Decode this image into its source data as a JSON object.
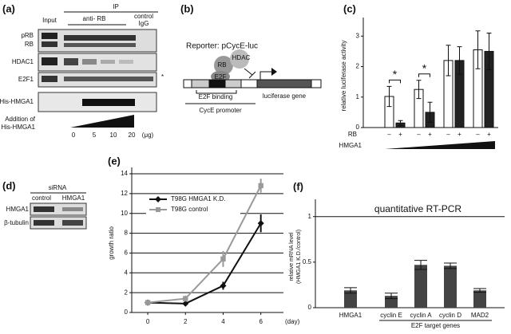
{
  "panel_a": {
    "label": "(a)",
    "ip": "IP",
    "input": "Input",
    "antibody": "anti- RB",
    "control": [
      "control",
      "IgG"
    ],
    "rows": [
      "pRB",
      "RB",
      "HDAC1",
      "E2F1",
      "His-HMGA1"
    ],
    "asterisk": "*",
    "addition": [
      "Addition of",
      "His-HMGA1"
    ],
    "doses": [
      "0",
      "5",
      "10",
      "20"
    ],
    "unit": "(μg)"
  },
  "panel_b": {
    "label": "(b)",
    "reporter": "Reporter: pCycE-luc",
    "rb": "RB",
    "hdac": "HDAC",
    "e2f": "E2F",
    "binding": "E2F binding",
    "promoter": "CycE promoter",
    "gene": "luciferase gene"
  },
  "panel_d": {
    "label": "(d)",
    "sirna": "siRNA",
    "columns": [
      "control",
      "HMGA1"
    ],
    "rows": [
      "HMGA1",
      "β-tubulin"
    ]
  },
  "chart_data": [
    {
      "type": "bar",
      "label": "(c)",
      "ylabel": "relative luciferase activity",
      "ylim": [
        0,
        3.4
      ],
      "yticks": [
        0,
        1,
        2,
        3
      ],
      "categories": [
        null,
        null,
        null,
        null
      ],
      "series": [
        {
          "name": "–",
          "color": "#ffffff",
          "values": [
            1.02,
            1.25,
            2.2,
            2.55
          ],
          "errors": [
            0.33,
            0.3,
            0.5,
            0.62
          ]
        },
        {
          "name": "+",
          "color": "#222222",
          "values": [
            0.15,
            0.5,
            2.2,
            2.5
          ],
          "errors": [
            0.08,
            0.33,
            0.45,
            0.6
          ]
        }
      ],
      "row_label": "RB",
      "xlabel": "HMGA1",
      "annotations": [
        {
          "text": "*",
          "category": 0
        },
        {
          "text": "*",
          "category": 1
        }
      ]
    },
    {
      "type": "line",
      "label": "(e)",
      "ylabel": "growth ratio",
      "xlabel": "(day)",
      "xlim": [
        -0.85,
        7.2
      ],
      "xticks": [
        0,
        2,
        4,
        6
      ],
      "ylim": [
        0,
        14
      ],
      "yticks": [
        0,
        2,
        4,
        6,
        8,
        10,
        12,
        14
      ],
      "grid": true,
      "x": [
        0,
        2,
        4,
        6
      ],
      "series": [
        {
          "name": "T98G HMGA1 K.D.",
          "color": "#111111",
          "marker": "diamond",
          "values": [
            1,
            0.9,
            2.7,
            9.0
          ],
          "errors": [
            0.2,
            0.2,
            0.4,
            0.9
          ]
        },
        {
          "name": "T98G control",
          "color": "#999999",
          "marker": "square",
          "values": [
            1,
            1.4,
            5.4,
            12.8
          ],
          "errors": [
            0.2,
            0.3,
            0.8,
            0.7
          ]
        }
      ]
    },
    {
      "type": "bar",
      "label": "(f)",
      "title": "quantitative RT-PCR",
      "ylabel": [
        "relative mRNA level",
        "(HMGA1 K.D./control)"
      ],
      "ylim": [
        0,
        1.12
      ],
      "yticks": [
        0,
        0.5,
        1
      ],
      "hline": 1,
      "color": "#444444",
      "categories": [
        "HMGA1",
        "cyclin E",
        "cyclin A",
        "cyclin D",
        "MAD2"
      ],
      "values": [
        0.19,
        0.13,
        0.47,
        0.46,
        0.19
      ],
      "errors": [
        0.03,
        0.03,
        0.05,
        0.03,
        0.02
      ],
      "group_label": "E2F target genes"
    }
  ]
}
